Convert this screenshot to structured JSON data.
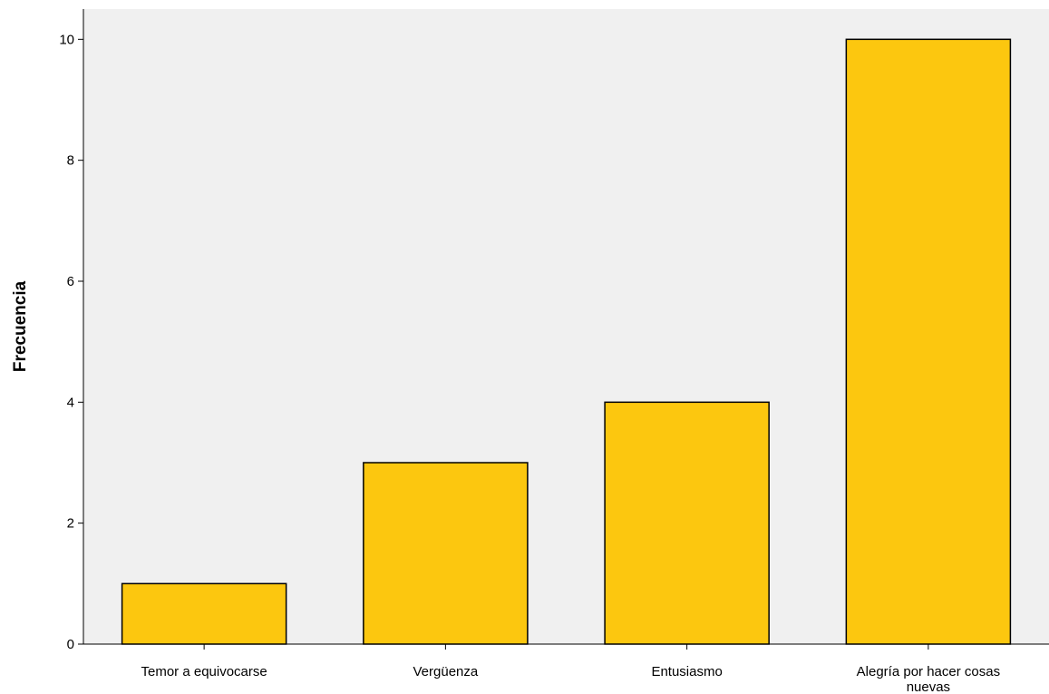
{
  "chart_data": {
    "type": "bar",
    "title": "",
    "xlabel": "",
    "ylabel": "Frecuencia",
    "categories": [
      [
        "Temor a equivocarse"
      ],
      [
        "Vergüenza"
      ],
      [
        "Entusiasmo"
      ],
      [
        "Alegría por hacer cosas",
        "nuevas"
      ]
    ],
    "values": [
      1,
      3,
      4,
      10
    ],
    "ylim": [
      0,
      10.5
    ],
    "yticks": [
      "0",
      "2",
      "4",
      "6",
      "8",
      "10"
    ],
    "grid": false,
    "legend": "none"
  },
  "colors": {
    "bar_fill": "#FCC70F",
    "plot_background": "#F0F0F0",
    "axis": "#000000"
  }
}
